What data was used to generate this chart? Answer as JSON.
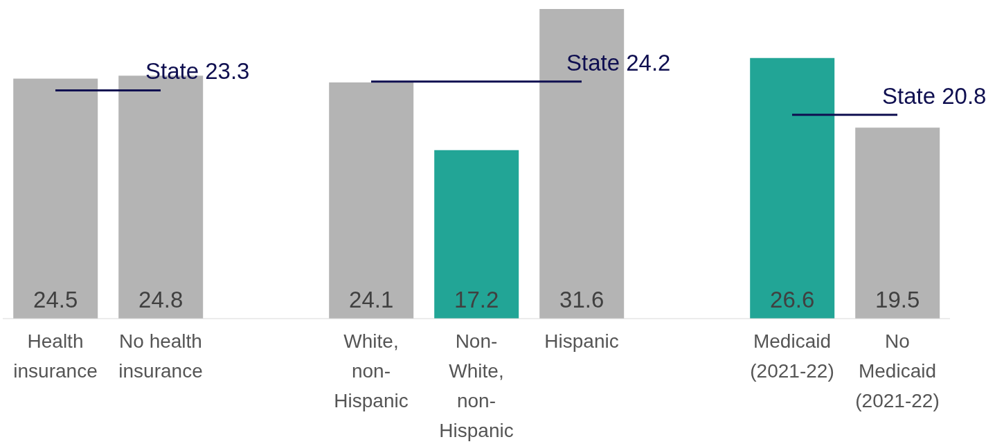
{
  "chart_data": {
    "type": "bar",
    "categories": [
      "Health insurance",
      "No health insurance",
      null,
      "White, non-Hispanic",
      "Non-White, non-Hispanic",
      "Hispanic",
      null,
      "Medicaid (2021-22)",
      "No Medicaid (2021-22)"
    ],
    "values": [
      24.5,
      24.8,
      null,
      24.1,
      17.2,
      31.6,
      null,
      26.6,
      19.5
    ],
    "colors": [
      "#b4b4b4",
      "#b4b4b4",
      "#b4b4b4",
      "#b4b4b4",
      "#22a596",
      "#b4b4b4",
      "#b4b4b4",
      "#22a596",
      "#b4b4b4"
    ],
    "data_labels": true,
    "ref_lines": [
      {
        "axis": "y",
        "value": 23.3,
        "label": "State 23.3",
        "color": "#0f0f50"
      },
      {
        "axis": "y",
        "value": 24.2,
        "label": "State 24.2",
        "color": "#0f0f50"
      },
      {
        "axis": "y",
        "value": 20.8,
        "label": "State 20.8",
        "color": "#0f0f50"
      }
    ]
  }
}
